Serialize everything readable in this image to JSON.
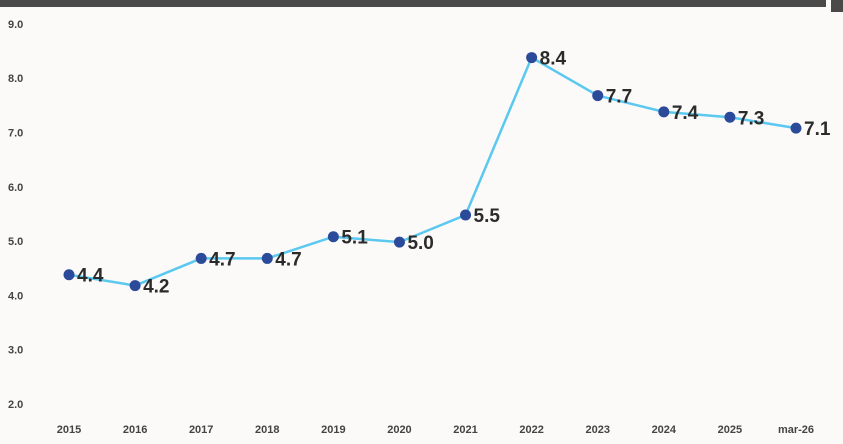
{
  "chart_data": {
    "type": "line",
    "categories": [
      "2015",
      "2016",
      "2017",
      "2018",
      "2019",
      "2020",
      "2021",
      "2022",
      "2023",
      "2024",
      "2025",
      "mar-26"
    ],
    "series": [
      {
        "color": "#5bc8f0",
        "marker_color": "#2c4a9a",
        "values": [
          4.4,
          4.2,
          4.7,
          4.7,
          5.1,
          5.0,
          5.5,
          8.4,
          7.7,
          7.4,
          7.3,
          7.1
        ],
        "value_labels": [
          "4.4",
          "4.2",
          "4.7",
          "4.7",
          "5.1",
          "5.0",
          "5.5",
          "8.4",
          "7.7",
          "7.4",
          "7.3",
          "7.1"
        ]
      }
    ],
    "ylim": [
      2,
      9
    ],
    "yticks": [
      {
        "value": 2,
        "label": "2.0"
      },
      {
        "value": 3,
        "label": "3.0"
      },
      {
        "value": 4,
        "label": "4.0"
      },
      {
        "value": 5,
        "label": "5.0"
      },
      {
        "value": 6,
        "label": "6.0"
      },
      {
        "value": 7,
        "label": "7.0"
      },
      {
        "value": 8,
        "label": "8.0"
      },
      {
        "value": 9,
        "label": "9.0"
      }
    ]
  }
}
